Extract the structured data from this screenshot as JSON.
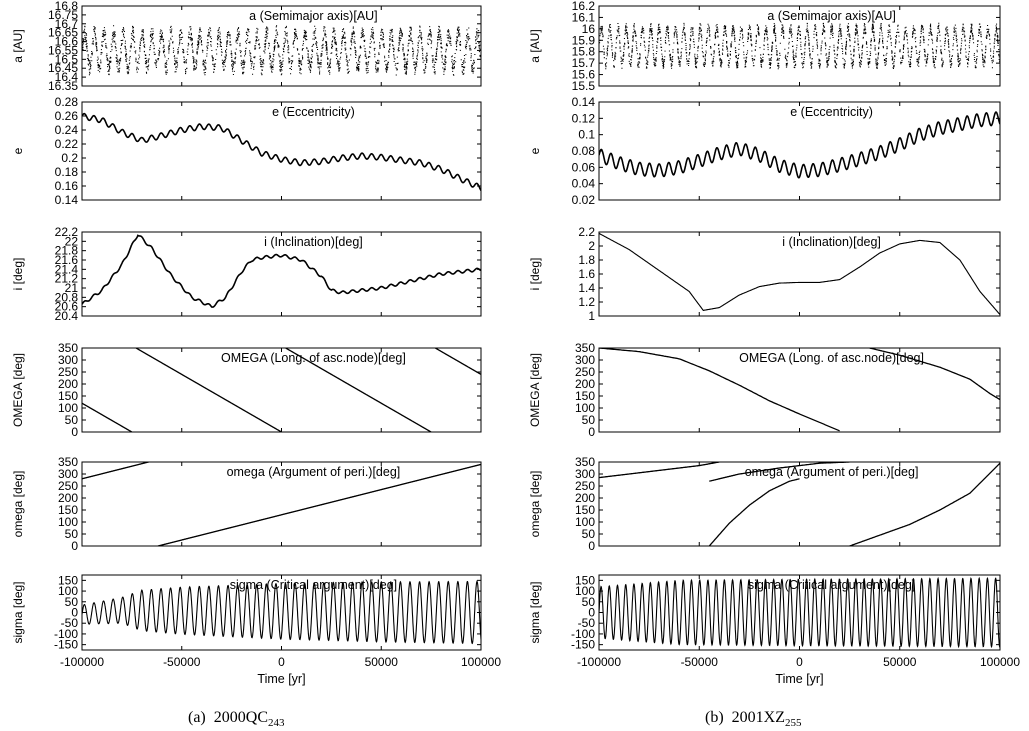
{
  "captions": [
    {
      "tag": "(a)",
      "name": "2000QC",
      "sub": "243"
    },
    {
      "tag": "(b)",
      "name": "2001XZ",
      "sub": "255"
    }
  ],
  "xlabel": "Time [yr]",
  "xlim": [
    -100000,
    100000
  ],
  "xticks": [
    -100000,
    -50000,
    0,
    50000,
    100000
  ],
  "chart_data": [
    {
      "type": "scatter",
      "column": 0,
      "row": 0,
      "title": "a (Semimajor axis)[AU]",
      "ylabel": "a [AU]",
      "ylim": [
        16.35,
        16.8
      ],
      "yticks": [
        16.35,
        16.4,
        16.45,
        16.5,
        16.55,
        16.6,
        16.65,
        16.7,
        16.75,
        16.8
      ],
      "shape": {
        "kind": "osc",
        "center": 16.55,
        "amp": 0.1,
        "noise": 0.04,
        "period": 4800
      }
    },
    {
      "type": "scatter",
      "column": 0,
      "row": 1,
      "title": "e (Eccentricity)",
      "ylabel": "e",
      "ylim": [
        0.14,
        0.28
      ],
      "yticks": [
        0.14,
        0.16,
        0.18,
        0.2,
        0.22,
        0.24,
        0.26,
        0.28
      ],
      "shape": {
        "kind": "trend",
        "x": [
          -100000,
          -90000,
          -80000,
          -70000,
          -60000,
          -50000,
          -40000,
          -30000,
          -20000,
          -10000,
          0,
          10000,
          20000,
          30000,
          40000,
          50000,
          60000,
          70000,
          80000,
          90000,
          100000
        ],
        "y": [
          0.26,
          0.254,
          0.237,
          0.225,
          0.232,
          0.24,
          0.245,
          0.243,
          0.225,
          0.207,
          0.198,
          0.193,
          0.195,
          0.2,
          0.203,
          0.201,
          0.197,
          0.193,
          0.184,
          0.17,
          0.157
        ],
        "amp": 0.004,
        "period": 4800
      }
    },
    {
      "type": "line",
      "column": 0,
      "row": 2,
      "title": "i (Inclination)[deg]",
      "ylabel": "i [deg]",
      "ylim": [
        20.4,
        22.2
      ],
      "yticks": [
        20.4,
        20.6,
        20.8,
        21,
        21.2,
        21.4,
        21.6,
        21.8,
        22,
        22.2
      ],
      "shape": {
        "kind": "trend",
        "x": [
          -100000,
          -90000,
          -80000,
          -72000,
          -65000,
          -55000,
          -45000,
          -35000,
          -28000,
          -20000,
          -15000,
          -10000,
          0,
          10000,
          20000,
          25000,
          30000,
          40000,
          50000,
          60000,
          70000,
          80000,
          90000,
          100000
        ],
        "y": [
          20.65,
          20.95,
          21.5,
          22.15,
          21.85,
          21.25,
          20.8,
          20.6,
          20.8,
          21.35,
          21.6,
          21.65,
          21.7,
          21.6,
          21.25,
          20.95,
          20.9,
          20.95,
          21,
          21.1,
          21.2,
          21.3,
          21.35,
          21.4
        ],
        "amp": 0.03,
        "period": 4800
      }
    },
    {
      "type": "line",
      "column": 0,
      "row": 3,
      "title": "OMEGA (Long. of asc.node)[deg]",
      "ylabel": "OMEGA [deg]",
      "ylim": [
        0,
        350
      ],
      "yticks": [
        0,
        50,
        100,
        150,
        200,
        250,
        300,
        350
      ],
      "shape": {
        "kind": "wrap",
        "start": 120,
        "rate": -0.0048,
        "amp": 0
      }
    },
    {
      "type": "line",
      "column": 0,
      "row": 4,
      "title": "omega (Argument of peri.)[deg]",
      "ylabel": "omega [deg]",
      "ylim": [
        0,
        350
      ],
      "yticks": [
        0,
        50,
        100,
        150,
        200,
        250,
        300,
        350
      ],
      "shape": {
        "kind": "wrap",
        "start": 280,
        "rate": 0.0021,
        "amp": 0
      }
    },
    {
      "type": "line",
      "column": 0,
      "row": 5,
      "title": "sigma (Critical argument)[deg]",
      "ylabel": "sigma [deg]",
      "ylim": [
        -175,
        175
      ],
      "yticks": [
        -150,
        -100,
        -50,
        0,
        50,
        100,
        150
      ],
      "shape": {
        "kind": "libr",
        "amp": [
          [
            -100000,
            45
          ],
          [
            -80000,
            60
          ],
          [
            -70000,
            95
          ],
          [
            -50000,
            110
          ],
          [
            0,
            130
          ],
          [
            50000,
            140
          ],
          [
            100000,
            145
          ]
        ],
        "center": [
          [
            -100000,
            -10
          ],
          [
            -80000,
            10
          ],
          [
            100000,
            0
          ]
        ],
        "period": 4800
      }
    },
    {
      "type": "scatter",
      "column": 1,
      "row": 0,
      "title": "a (Semimajor axis)[AU]",
      "ylabel": "a [AU]",
      "ylim": [
        15.5,
        16.2
      ],
      "yticks": [
        15.5,
        15.6,
        15.7,
        15.8,
        15.9,
        16,
        16.1,
        16.2
      ],
      "shape": {
        "kind": "osc",
        "center": 15.85,
        "amp": 0.16,
        "noise": 0.04,
        "period": 4100
      }
    },
    {
      "type": "line",
      "column": 1,
      "row": 1,
      "title": "e (Eccentricity)",
      "ylabel": "e",
      "ylim": [
        0.02,
        0.14
      ],
      "yticks": [
        0.02,
        0.04,
        0.06,
        0.08,
        0.1,
        0.12,
        0.14
      ],
      "shape": {
        "kind": "trend",
        "x": [
          -100000,
          -90000,
          -80000,
          -70000,
          -60000,
          -50000,
          -40000,
          -30000,
          -20000,
          -10000,
          0,
          10000,
          20000,
          30000,
          40000,
          50000,
          60000,
          70000,
          80000,
          90000,
          100000
        ],
        "y": [
          0.075,
          0.065,
          0.058,
          0.056,
          0.06,
          0.068,
          0.077,
          0.083,
          0.075,
          0.062,
          0.055,
          0.057,
          0.063,
          0.07,
          0.078,
          0.088,
          0.1,
          0.108,
          0.113,
          0.118,
          0.12
        ],
        "amp": 0.008,
        "period": 4800
      }
    },
    {
      "type": "line",
      "column": 1,
      "row": 2,
      "title": "i (Inclination)[deg]",
      "ylabel": "i [deg]",
      "ylim": [
        1,
        2.2
      ],
      "yticks": [
        1,
        1.2,
        1.4,
        1.6,
        1.8,
        2,
        2.2
      ],
      "shape": {
        "kind": "trend",
        "x": [
          -100000,
          -85000,
          -70000,
          -55000,
          -48000,
          -40000,
          -30000,
          -20000,
          -10000,
          0,
          10000,
          20000,
          30000,
          40000,
          50000,
          60000,
          70000,
          80000,
          90000,
          100000
        ],
        "y": [
          2.18,
          1.95,
          1.65,
          1.35,
          1.08,
          1.12,
          1.3,
          1.42,
          1.47,
          1.48,
          1.48,
          1.52,
          1.7,
          1.9,
          2.03,
          2.08,
          2.05,
          1.8,
          1.35,
          1.02
        ],
        "amp": 0,
        "period": 4800
      }
    },
    {
      "type": "line",
      "column": 1,
      "row": 3,
      "title": "OMEGA (Long. of asc.node)[deg]",
      "ylabel": "OMEGA [deg]",
      "ylim": [
        0,
        350
      ],
      "yticks": [
        0,
        50,
        100,
        150,
        200,
        250,
        300,
        350
      ],
      "shape": {
        "kind": "trend2",
        "segments": [
          {
            "x": [
              -100000,
              -80000,
              -60000,
              -45000,
              -30000,
              -15000,
              0,
              10000,
              20000
            ],
            "y": [
              350,
              335,
              305,
              255,
              195,
              130,
              75,
              40,
              5
            ]
          },
          {
            "x": [
              35000,
              50000,
              70000,
              85000,
              95000,
              100000
            ],
            "y": [
              350,
              320,
              270,
              220,
              160,
              135
            ]
          }
        ]
      }
    },
    {
      "type": "line",
      "column": 1,
      "row": 4,
      "title": "omega (Argument of peri.)[deg]",
      "ylabel": "omega [deg]",
      "ylim": [
        0,
        350
      ],
      "yticks": [
        0,
        50,
        100,
        150,
        200,
        250,
        300,
        350
      ],
      "shape": {
        "kind": "trend2",
        "segments": [
          {
            "x": [
              -100000,
              -80000,
              -65000,
              -50000,
              -40000
            ],
            "y": [
              285,
              305,
              320,
              335,
              350
            ]
          },
          {
            "x": [
              -45000,
              -30000,
              -10000,
              10000,
              25000
            ],
            "y": [
              270,
              300,
              325,
              345,
              350
            ]
          },
          {
            "x": [
              -45000,
              -35000,
              -25000,
              -15000,
              -5000,
              0
            ],
            "y": [
              0,
              95,
              170,
              230,
              270,
              280
            ]
          },
          {
            "x": [
              25000,
              40000,
              55000,
              70000,
              85000,
              100000
            ],
            "y": [
              0,
              45,
              90,
              150,
              220,
              345
            ]
          }
        ]
      }
    },
    {
      "type": "line",
      "column": 1,
      "row": 5,
      "title": "sigma (Critical argument)[deg]",
      "ylabel": "sigma [deg]",
      "ylim": [
        -175,
        175
      ],
      "yticks": [
        -150,
        -100,
        -50,
        0,
        50,
        100,
        150
      ],
      "shape": {
        "kind": "libr",
        "amp": [
          [
            -100000,
            120
          ],
          [
            -60000,
            150
          ],
          [
            0,
            155
          ],
          [
            100000,
            160
          ]
        ],
        "center": [
          [
            -100000,
            0
          ],
          [
            100000,
            0
          ]
        ],
        "period": 4100
      }
    }
  ]
}
